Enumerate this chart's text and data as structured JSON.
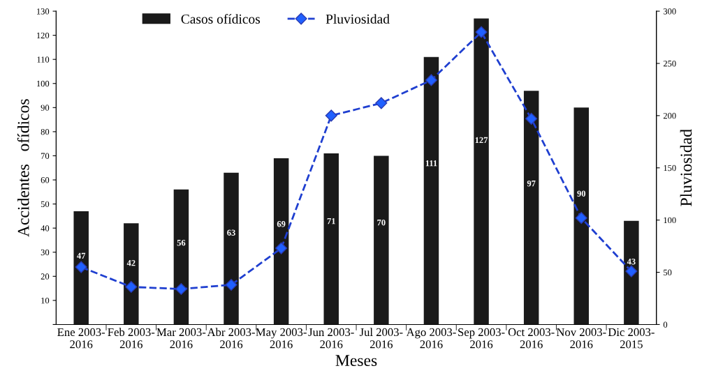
{
  "chart_data": {
    "type": "bar",
    "xlabel": "Meses",
    "ylabel": "Accidentes   ofídicos",
    "y2label": "Pluviosidad",
    "categories": [
      "Ene 2003-\n2016",
      "Feb 2003-\n2016",
      "Mar 2003-\n2016",
      "Abr 2003-\n2016",
      "May 2003-\n2016",
      "Jun 2003-\n2016",
      "Jul 2003-\n2016",
      "Ago 2003-\n2016",
      "Sep 2003-\n2016",
      "Oct 2003-\n2016",
      "Nov 2003-\n2016",
      "Dic 2003-\n2015"
    ],
    "series": [
      {
        "name": "Casos ofídicos",
        "color": "#1a1a1a",
        "values": [
          47,
          42,
          56,
          63,
          69,
          71,
          70,
          111,
          127,
          97,
          90,
          43
        ],
        "value_labels": [
          "47",
          "42",
          "56",
          "63",
          "69",
          "71",
          "70",
          "111",
          "127",
          "97",
          "90",
          "43"
        ]
      },
      {
        "name": "Pluviosidad",
        "type": "line",
        "axis": "y2",
        "color": "#1f3fd0",
        "marker": "diamond",
        "line_style": "dashed",
        "values": [
          55,
          36,
          34,
          38,
          73,
          200,
          212,
          234,
          280,
          197,
          102,
          51
        ]
      }
    ],
    "ylim": [
      0,
      130
    ],
    "yticks": [
      {
        "value": 0,
        "label": null
      },
      10,
      20,
      30,
      40,
      50,
      60,
      70,
      80,
      90,
      100,
      110,
      120,
      130
    ],
    "y2lim": [
      0,
      300
    ],
    "y2ticks": [
      0,
      50,
      100,
      150,
      200,
      250,
      300
    ],
    "legend": "top",
    "grid": false
  }
}
